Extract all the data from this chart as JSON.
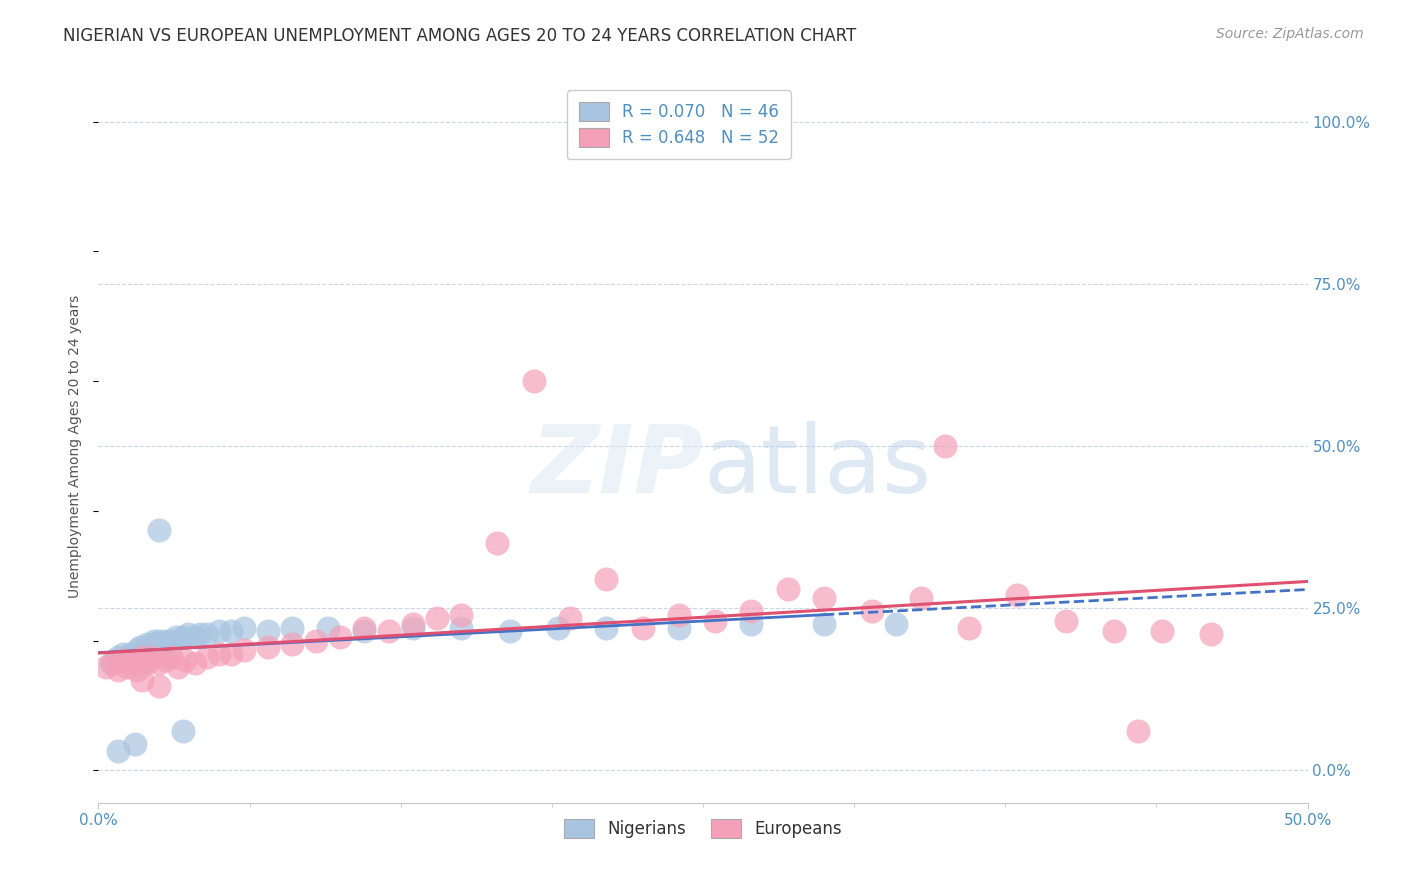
{
  "title": "NIGERIAN VS EUROPEAN UNEMPLOYMENT AMONG AGES 20 TO 24 YEARS CORRELATION CHART",
  "source": "Source: ZipAtlas.com",
  "ylabel": "Unemployment Among Ages 20 to 24 years",
  "ytick_vals": [
    0.0,
    0.25,
    0.5,
    0.75,
    1.0
  ],
  "ytick_labels": [
    "0.0%",
    "25.0%",
    "50.0%",
    "75.0%",
    "100.0%"
  ],
  "xtick_vals": [
    0.0,
    0.5
  ],
  "xtick_labels": [
    "0.0%",
    "50.0%"
  ],
  "xlim": [
    0.0,
    0.5
  ],
  "ylim": [
    -0.05,
    1.05
  ],
  "legend_R_nigerian": "R = 0.070",
  "legend_N_nigerian": "N = 46",
  "legend_R_european": "R = 0.648",
  "legend_N_european": "N = 52",
  "nigerian_color": "#a8c4e0",
  "european_color": "#f4a0b8",
  "nigerian_line_color": "#4472c4",
  "european_line_color": "#e05070",
  "background_color": "#ffffff",
  "grid_color": "#c8d8e8",
  "watermark_color": "#dce8f0",
  "tick_color": "#5090c0",
  "title_fontsize": 12,
  "axis_label_fontsize": 10,
  "tick_fontsize": 11,
  "legend_fontsize": 12,
  "source_fontsize": 10,
  "nigerian_x": [
    0.005,
    0.008,
    0.01,
    0.012,
    0.013,
    0.015,
    0.016,
    0.017,
    0.018,
    0.019,
    0.02,
    0.021,
    0.022,
    0.023,
    0.024,
    0.025,
    0.026,
    0.027,
    0.028,
    0.03,
    0.032,
    0.035,
    0.037,
    0.04,
    0.042,
    0.045,
    0.05,
    0.055,
    0.06,
    0.07,
    0.08,
    0.095,
    0.11,
    0.13,
    0.15,
    0.17,
    0.19,
    0.21,
    0.24,
    0.27,
    0.3,
    0.33,
    0.025,
    0.035,
    0.015,
    0.008
  ],
  "nigerian_y": [
    0.165,
    0.175,
    0.18,
    0.17,
    0.18,
    0.175,
    0.185,
    0.19,
    0.18,
    0.17,
    0.195,
    0.185,
    0.19,
    0.2,
    0.195,
    0.2,
    0.195,
    0.19,
    0.2,
    0.2,
    0.205,
    0.205,
    0.21,
    0.205,
    0.21,
    0.21,
    0.215,
    0.215,
    0.22,
    0.215,
    0.22,
    0.22,
    0.215,
    0.22,
    0.22,
    0.215,
    0.22,
    0.22,
    0.22,
    0.225,
    0.225,
    0.225,
    0.37,
    0.06,
    0.04,
    0.03
  ],
  "european_x": [
    0.003,
    0.006,
    0.008,
    0.01,
    0.012,
    0.013,
    0.015,
    0.016,
    0.018,
    0.02,
    0.022,
    0.025,
    0.028,
    0.03,
    0.033,
    0.036,
    0.04,
    0.045,
    0.05,
    0.055,
    0.06,
    0.07,
    0.08,
    0.09,
    0.1,
    0.11,
    0.12,
    0.13,
    0.14,
    0.15,
    0.165,
    0.18,
    0.195,
    0.21,
    0.225,
    0.24,
    0.255,
    0.27,
    0.285,
    0.3,
    0.32,
    0.34,
    0.36,
    0.38,
    0.4,
    0.42,
    0.44,
    0.46,
    0.018,
    0.025,
    0.35,
    0.43
  ],
  "european_y": [
    0.16,
    0.165,
    0.155,
    0.17,
    0.16,
    0.165,
    0.17,
    0.155,
    0.175,
    0.165,
    0.175,
    0.165,
    0.17,
    0.175,
    0.16,
    0.17,
    0.165,
    0.175,
    0.18,
    0.18,
    0.185,
    0.19,
    0.195,
    0.2,
    0.205,
    0.22,
    0.215,
    0.225,
    0.235,
    0.24,
    0.35,
    0.6,
    0.235,
    0.295,
    0.22,
    0.24,
    0.23,
    0.245,
    0.28,
    0.265,
    0.245,
    0.265,
    0.22,
    0.27,
    0.23,
    0.215,
    0.215,
    0.21,
    0.14,
    0.13,
    0.5,
    0.06
  ]
}
